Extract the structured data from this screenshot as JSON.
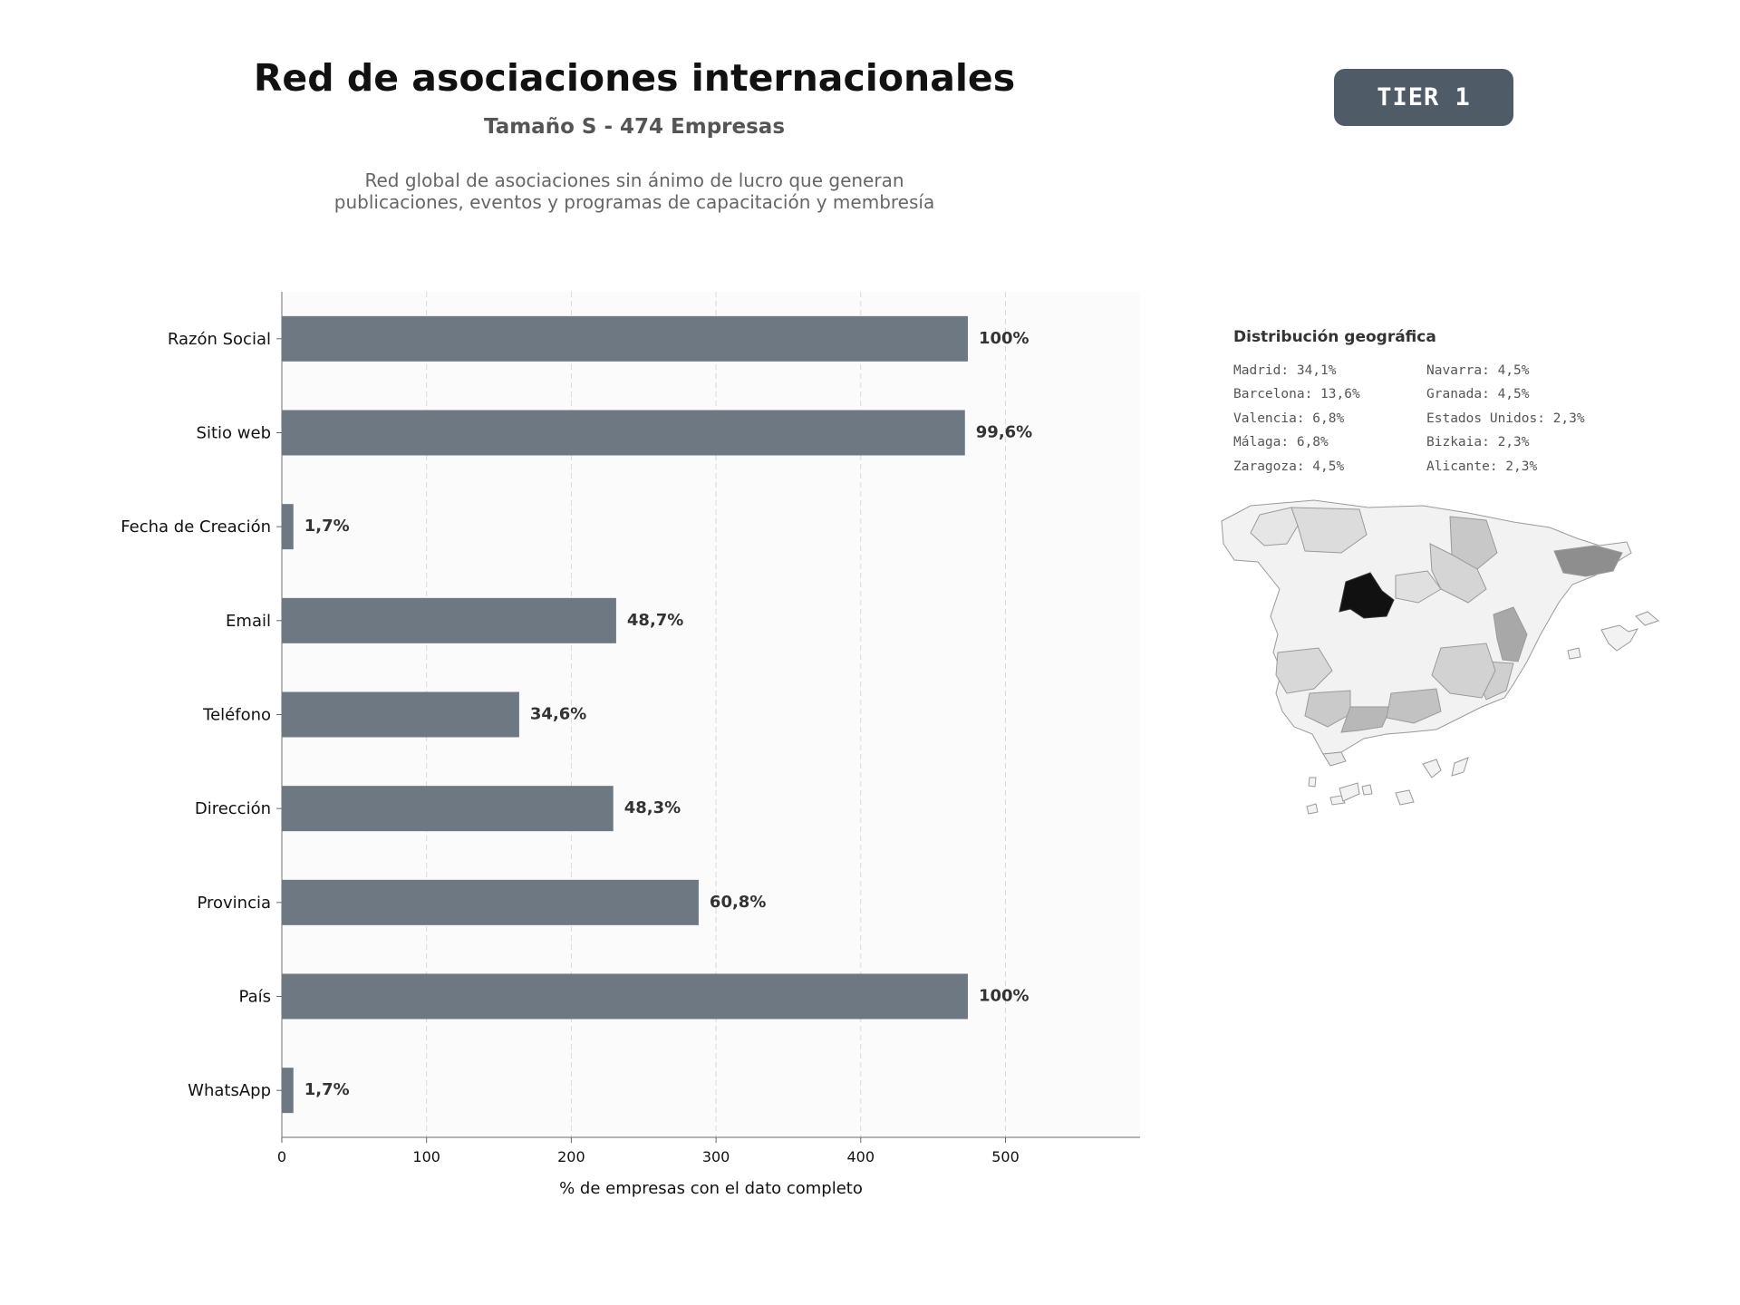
{
  "header": {
    "title": "Red de asociaciones internacionales",
    "subtitle": "Tamaño S - 474 Empresas",
    "description_line1": "Red global de asociaciones sin ánimo de lucro que generan",
    "description_line2": "publicaciones, eventos y programas de capacitación y membresía",
    "tier_badge": "TIER 1"
  },
  "colors": {
    "bar": "#6e7882",
    "badge": "#4f5b67",
    "plot_bg": "#fbfbfb"
  },
  "chart_data": {
    "type": "bar",
    "orientation": "horizontal",
    "categories": [
      "Razón Social",
      "Sitio web",
      "Fecha de Creación",
      "Email",
      "Teléfono",
      "Dirección",
      "Provincia",
      "País",
      "WhatsApp"
    ],
    "values": [
      474,
      472,
      8,
      231,
      164,
      229,
      288,
      474,
      8
    ],
    "data_labels": [
      "100%",
      "99,6%",
      "1,7%",
      "48,7%",
      "34,6%",
      "48,3%",
      "60,8%",
      "100%",
      "1,7%"
    ],
    "xlabel": "% de empresas con el dato completo",
    "xticks": [
      0,
      100,
      200,
      300,
      400,
      500
    ],
    "xlim": [
      0,
      593
    ],
    "grid": "vertical dashed"
  },
  "geo": {
    "title": "Distribución geográfica",
    "col1": [
      "Madrid: 34,1%",
      "Barcelona: 13,6%",
      "Valencia: 6,8%",
      "Málaga: 6,8%",
      "Zaragoza: 4,5%"
    ],
    "col2": [
      "Navarra: 4,5%",
      "Granada: 4,5%",
      "Estados Unidos: 2,3%",
      "Bizkaia: 2,3%",
      "Alicante: 2,3%"
    ]
  }
}
